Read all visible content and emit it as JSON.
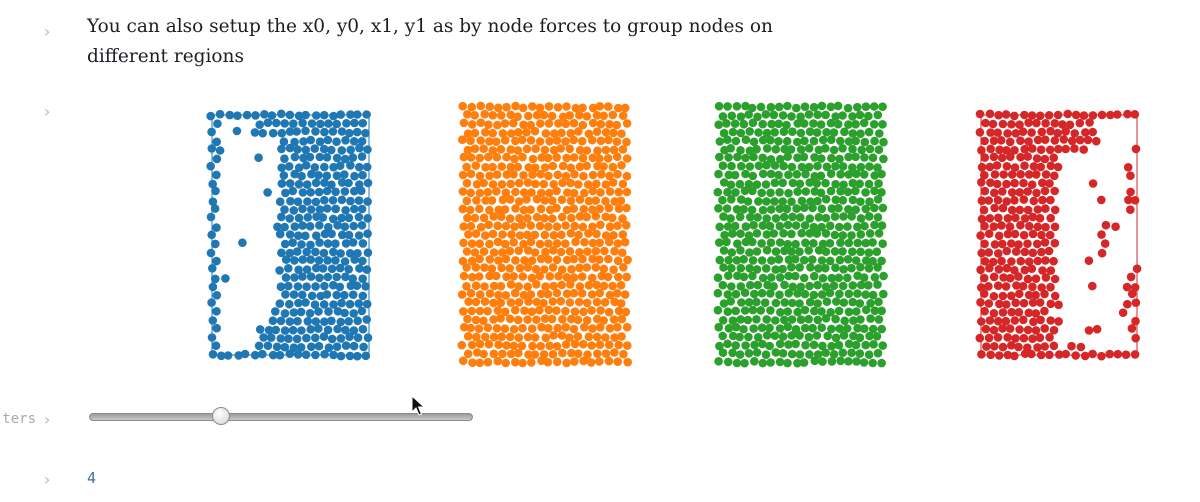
{
  "cells": [
    {
      "text": "You can also setup the x0, y0, x1, y1 as by node forces to group nodes on different regions"
    },
    {
      "label": ""
    },
    {
      "label": "ters"
    },
    {
      "value": "4"
    }
  ],
  "slider": {
    "min": 1,
    "max": 10,
    "value": 4
  },
  "groups": [
    {
      "color": "#1f77b4",
      "name": "blue"
    },
    {
      "color": "#ff7f0e",
      "name": "orange"
    },
    {
      "color": "#2ca02c",
      "name": "green"
    },
    {
      "color": "#d62728",
      "name": "red"
    }
  ],
  "icons": {
    "chevron": "chevron-right-icon",
    "cursor": "mouse-pointer-icon"
  }
}
